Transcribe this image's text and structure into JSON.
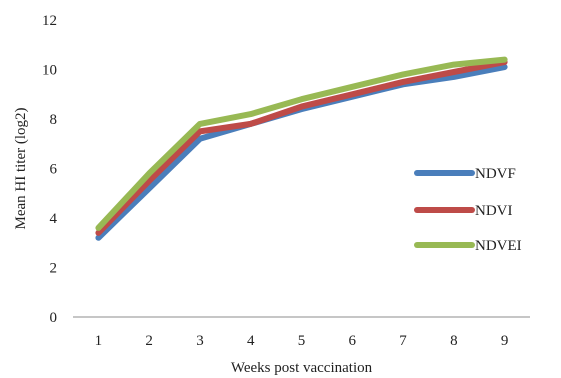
{
  "chart_data": {
    "type": "line",
    "title": "",
    "xlabel": "Weeks post vaccination",
    "ylabel": "Mean HI titer (log2)",
    "categories": [
      "1",
      "2",
      "3",
      "4",
      "5",
      "6",
      "7",
      "8",
      "9"
    ],
    "ylim": [
      0,
      12
    ],
    "yticks": [
      "0",
      "2",
      "4",
      "6",
      "8",
      "10",
      "12"
    ],
    "grid": false,
    "legend_position": "right",
    "series": [
      {
        "name": "NDVF",
        "color": "#4a7ebb",
        "values": [
          3.2,
          5.2,
          7.2,
          7.8,
          8.4,
          8.9,
          9.4,
          9.7,
          10.1
        ]
      },
      {
        "name": "NDVI",
        "color": "#be4b48",
        "values": [
          3.4,
          5.5,
          7.5,
          7.8,
          8.5,
          9.0,
          9.5,
          9.9,
          10.3
        ]
      },
      {
        "name": "NDVEI",
        "color": "#98b954",
        "values": [
          3.6,
          5.8,
          7.8,
          8.2,
          8.8,
          9.3,
          9.8,
          10.2,
          10.4
        ]
      }
    ]
  }
}
